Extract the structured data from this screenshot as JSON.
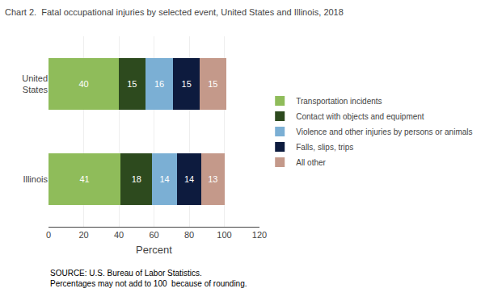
{
  "chart_data": {
    "type": "bar",
    "orientation": "horizontal",
    "stacked": true,
    "data_labels": true,
    "title": "Chart 2.  Fatal occupational injuries by selected event, United States and Illinois, 2018",
    "categories": [
      "Illinois",
      "United\nStates"
    ],
    "series": [
      {
        "name": "Transportation incidents",
        "color": "#8fbc5a",
        "values": [
          41,
          40
        ]
      },
      {
        "name": "Contact with objects and equipment",
        "color": "#2d4a1e",
        "values": [
          18,
          15
        ]
      },
      {
        "name": "Violence and other injuries by persons or animals",
        "color": "#7bafd4",
        "values": [
          14,
          16
        ]
      },
      {
        "name": "Falls, slips, trips",
        "color": "#0d1b3e",
        "values": [
          14,
          15
        ]
      },
      {
        "name": "All other",
        "color": "#c4998a",
        "values": [
          13,
          15
        ]
      }
    ],
    "xlabel": "Percent",
    "xlim": [
      0,
      120
    ],
    "xticks": [
      0,
      20,
      40,
      60,
      80,
      100,
      120
    ],
    "grid": true,
    "legend": "right",
    "annotations": [
      "SOURCE: U.S. Bureau of Labor Statistics.\nPercentages may not add to 100  because of rounding."
    ]
  }
}
